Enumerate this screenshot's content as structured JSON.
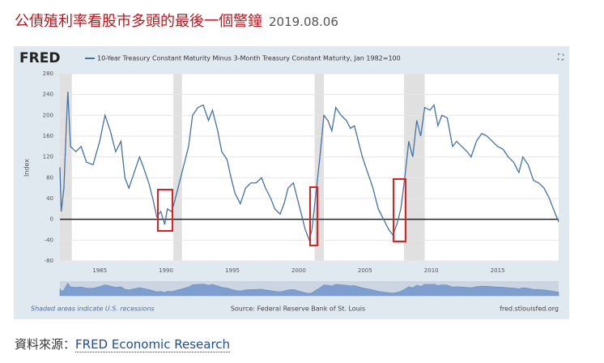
{
  "header": {
    "title": "公債殖利率看股市多頭的最後一個警鐘",
    "date": "2019.08.06"
  },
  "source": {
    "label": "資料來源：",
    "link": "FRED Economic Research"
  },
  "chart_data": {
    "type": "line",
    "logo": "FRED",
    "y_label": "Index",
    "footer_left": "Shaded areas indicate U.S. recessions",
    "footer_center": "Source: Federal Reserve Bank of St. Louis",
    "footer_right": "fred.stlouisfed.org",
    "xlim": [
      1982,
      2019.6
    ],
    "xticks": [
      1985,
      1990,
      1995,
      2000,
      2005,
      2010,
      2015
    ],
    "ylim": [
      -80,
      280
    ],
    "yticks": [
      -80,
      -40,
      0,
      40,
      80,
      120,
      160,
      200,
      240,
      280
    ],
    "grid": true,
    "recessions": [
      [
        1981.55,
        1982.9
      ],
      [
        1990.55,
        1991.2
      ],
      [
        2001.2,
        2001.9
      ],
      [
        2007.95,
        2009.5
      ]
    ],
    "x": [
      1982.0,
      1982.1,
      1982.3,
      1982.5,
      1982.6,
      1982.8,
      1983.2,
      1983.6,
      1984.0,
      1984.5,
      1985.0,
      1985.4,
      1985.8,
      1986.2,
      1986.6,
      1986.9,
      1987.2,
      1987.6,
      1988.0,
      1988.3,
      1988.7,
      1989.0,
      1989.3,
      1989.6,
      1989.9,
      1990.1,
      1990.4,
      1990.6,
      1990.9,
      1991.3,
      1991.7,
      1992.0,
      1992.4,
      1992.8,
      1993.2,
      1993.5,
      1993.9,
      1994.2,
      1994.6,
      1994.9,
      1995.2,
      1995.6,
      1996.0,
      1996.4,
      1996.8,
      1997.2,
      1997.5,
      1997.9,
      1998.2,
      1998.6,
      1998.9,
      1999.2,
      1999.6,
      1999.9,
      2000.2,
      2000.5,
      2000.8,
      2001.0,
      2001.3,
      2001.6,
      2001.9,
      2002.2,
      2002.5,
      2002.8,
      2003.2,
      2003.6,
      2003.9,
      2004.2,
      2004.5,
      2004.8,
      2005.2,
      2005.6,
      2006.0,
      2006.4,
      2006.8,
      2007.1,
      2007.4,
      2007.7,
      2008.0,
      2008.3,
      2008.6,
      2008.9,
      2009.2,
      2009.5,
      2009.9,
      2010.2,
      2010.5,
      2010.8,
      2011.2,
      2011.6,
      2011.9,
      2012.3,
      2012.7,
      2013.0,
      2013.4,
      2013.8,
      2014.2,
      2014.6,
      2015.0,
      2015.4,
      2015.8,
      2016.2,
      2016.6,
      2016.9,
      2017.3,
      2017.7,
      2018.1,
      2018.5,
      2018.9,
      2019.2,
      2019.6
    ],
    "series": [
      {
        "name": "10-Year Treasury Constant Maturity Minus 3-Month Treasury Constant Maturity, Jan 1982=100",
        "color": "#4572a7",
        "values": [
          100,
          15,
          60,
          190,
          245,
          140,
          130,
          140,
          110,
          105,
          150,
          200,
          170,
          130,
          150,
          80,
          60,
          90,
          120,
          100,
          70,
          40,
          5,
          15,
          -10,
          20,
          15,
          30,
          60,
          100,
          140,
          200,
          215,
          220,
          190,
          210,
          170,
          130,
          115,
          80,
          50,
          30,
          60,
          70,
          70,
          80,
          60,
          40,
          20,
          10,
          30,
          60,
          70,
          40,
          10,
          -20,
          -40,
          -20,
          50,
          120,
          200,
          190,
          170,
          215,
          200,
          190,
          175,
          180,
          150,
          120,
          90,
          60,
          20,
          0,
          -20,
          -30,
          -10,
          20,
          80,
          150,
          120,
          190,
          160,
          215,
          210,
          220,
          180,
          200,
          195,
          140,
          150,
          140,
          130,
          120,
          150,
          165,
          160,
          150,
          140,
          135,
          120,
          110,
          90,
          120,
          105,
          75,
          70,
          60,
          40,
          20,
          -5
        ]
      }
    ]
  }
}
